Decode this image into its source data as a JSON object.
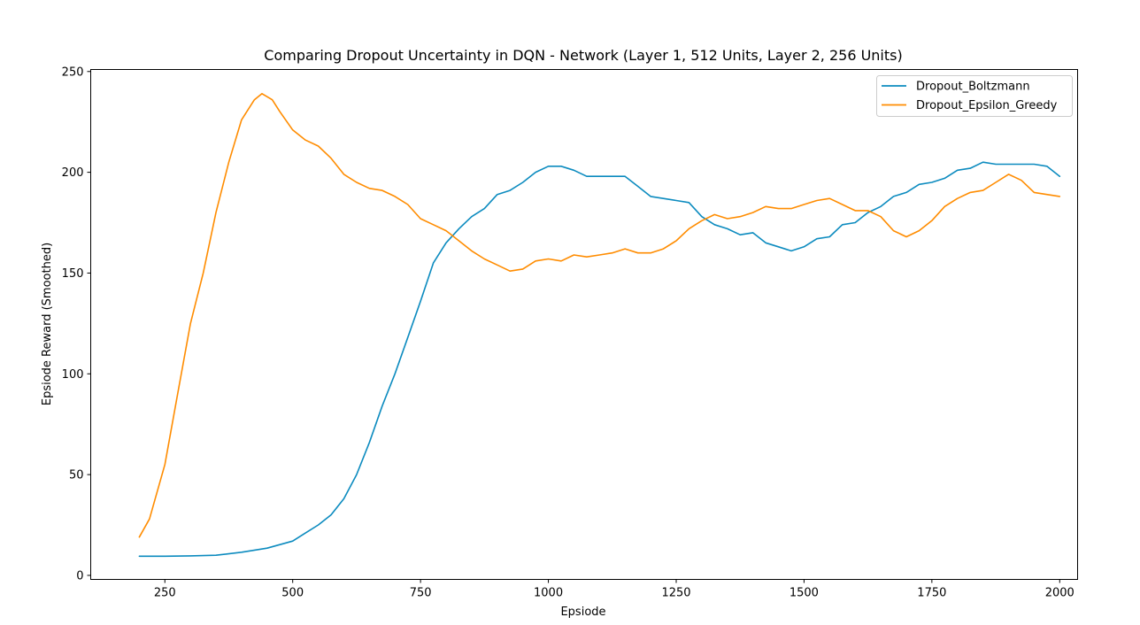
{
  "chart_data": {
    "type": "line",
    "title": "Comparing Dropout Uncertainty in DQN - Network (Layer 1, 512 Units, Layer 2, 256 Units)",
    "xlabel": "Epsiode",
    "ylabel": "Epsiode Reward (Smoothed)",
    "xlim": [
      105,
      2035
    ],
    "ylim": [
      -2,
      251
    ],
    "xticks": [
      250,
      500,
      750,
      1000,
      1250,
      1500,
      1750,
      2000
    ],
    "yticks": [
      0,
      50,
      100,
      150,
      200,
      250
    ],
    "grid": false,
    "legend_position": "top-right",
    "series": [
      {
        "name": "Dropout_Boltzmann",
        "color": "#0c8bbf",
        "x": [
          200,
          250,
          300,
          350,
          400,
          450,
          500,
          525,
          550,
          575,
          600,
          625,
          650,
          675,
          700,
          725,
          750,
          775,
          800,
          825,
          850,
          875,
          900,
          925,
          950,
          975,
          1000,
          1025,
          1050,
          1075,
          1100,
          1125,
          1150,
          1175,
          1200,
          1225,
          1250,
          1275,
          1300,
          1325,
          1350,
          1375,
          1400,
          1425,
          1450,
          1475,
          1500,
          1525,
          1550,
          1575,
          1600,
          1625,
          1650,
          1675,
          1700,
          1725,
          1750,
          1775,
          1800,
          1825,
          1850,
          1875,
          1900,
          1925,
          1950,
          1975,
          2000
        ],
        "y": [
          9.5,
          9.5,
          9.7,
          10,
          11.5,
          13.5,
          17,
          21,
          25,
          30,
          38,
          50,
          66,
          84,
          100,
          118,
          136,
          155,
          165,
          172,
          178,
          182,
          189,
          191,
          195,
          200,
          203,
          203,
          201,
          198,
          198,
          198,
          198,
          193,
          188,
          187,
          186,
          185,
          178,
          174,
          172,
          169,
          170,
          165,
          163,
          161,
          163,
          167,
          168,
          174,
          175,
          180,
          183,
          188,
          190,
          194,
          195,
          197,
          201,
          202,
          205,
          204,
          204,
          204,
          204,
          203,
          198
        ]
      },
      {
        "name": "Dropout_Epsilon_Greedy",
        "color": "#ff8c00",
        "x": [
          200,
          220,
          250,
          275,
          300,
          325,
          350,
          375,
          400,
          425,
          440,
          460,
          475,
          500,
          525,
          550,
          575,
          600,
          625,
          650,
          675,
          700,
          725,
          750,
          775,
          800,
          825,
          850,
          875,
          900,
          925,
          950,
          975,
          1000,
          1025,
          1050,
          1075,
          1100,
          1125,
          1150,
          1175,
          1200,
          1225,
          1250,
          1275,
          1300,
          1325,
          1350,
          1375,
          1400,
          1425,
          1450,
          1475,
          1500,
          1525,
          1550,
          1575,
          1600,
          1625,
          1650,
          1675,
          1700,
          1725,
          1750,
          1775,
          1800,
          1825,
          1850,
          1875,
          1900,
          1925,
          1950,
          1975,
          2000
        ],
        "y": [
          19,
          28,
          55,
          90,
          125,
          150,
          180,
          205,
          226,
          236,
          239,
          236,
          230,
          221,
          216,
          213,
          207,
          199,
          195,
          192,
          191,
          188,
          184,
          177,
          174,
          171,
          166,
          161,
          157,
          154,
          151,
          152,
          156,
          157,
          156,
          159,
          158,
          159,
          160,
          162,
          160,
          160,
          162,
          166,
          172,
          176,
          179,
          177,
          178,
          180,
          183,
          182,
          182,
          184,
          186,
          187,
          184,
          181,
          181,
          178,
          171,
          168,
          171,
          176,
          183,
          187,
          190,
          191,
          195,
          199,
          196,
          190,
          189,
          188
        ]
      }
    ]
  }
}
